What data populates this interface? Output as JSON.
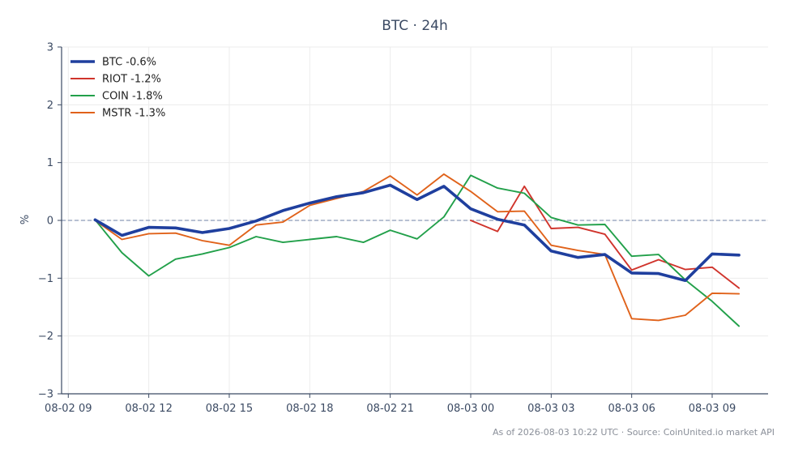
{
  "chart_data": {
    "type": "line",
    "title": "BTC · 24h",
    "xlabel": "",
    "ylabel": "%",
    "ylim": [
      -3,
      3
    ],
    "xlim": [
      "2026-08-02 08:45",
      "2026-08-03 11:05"
    ],
    "y_ticks": [
      3,
      2,
      1,
      0,
      -1,
      -2,
      -3
    ],
    "y_tick_labels": [
      "3",
      "2",
      "1",
      "0",
      "−1",
      "−2",
      "−3"
    ],
    "x_ticks": [
      "2026-08-02 09:00",
      "2026-08-02 12:00",
      "2026-08-02 15:00",
      "2026-08-02 18:00",
      "2026-08-02 21:00",
      "2026-08-03 00:00",
      "2026-08-03 03:00",
      "2026-08-03 06:00",
      "2026-08-03 09:00"
    ],
    "x_tick_labels": [
      "08-02 09",
      "08-02 12",
      "08-02 15",
      "08-02 18",
      "08-02 21",
      "08-03 00",
      "08-03 03",
      "08-03 06",
      "08-03 09"
    ],
    "grid": true,
    "zero_line": true,
    "legend_position": "top-left",
    "colors": {
      "BTC": "#1f3f9e",
      "RIOT": "#d0342c",
      "COIN": "#22a04a",
      "MSTR": "#e0621a",
      "zero_line": "#8c9bb8",
      "grid": "#ececec",
      "axis": "#3b4a63"
    },
    "series": [
      {
        "name": "BTC -0.6%",
        "key": "BTC",
        "x": [
          "2026-08-02 10:00",
          "2026-08-02 11:00",
          "2026-08-02 12:00",
          "2026-08-02 13:00",
          "2026-08-02 14:00",
          "2026-08-02 15:00",
          "2026-08-02 16:00",
          "2026-08-02 17:00",
          "2026-08-02 18:00",
          "2026-08-02 19:00",
          "2026-08-02 20:00",
          "2026-08-02 21:00",
          "2026-08-02 22:00",
          "2026-08-02 23:00",
          "2026-08-03 00:00",
          "2026-08-03 01:00",
          "2026-08-03 02:00",
          "2026-08-03 03:00",
          "2026-08-03 04:00",
          "2026-08-03 05:00",
          "2026-08-03 06:00",
          "2026-08-03 07:00",
          "2026-08-03 08:00",
          "2026-08-03 09:00",
          "2026-08-03 10:00"
        ],
        "y": [
          0.01,
          -0.26,
          -0.12,
          -0.13,
          -0.21,
          -0.14,
          -0.01,
          0.17,
          0.3,
          0.41,
          0.48,
          0.61,
          0.36,
          0.59,
          0.2,
          0.02,
          -0.08,
          -0.53,
          -0.64,
          -0.59,
          -0.91,
          -0.92,
          -1.04,
          -0.58,
          -0.6
        ]
      },
      {
        "name": "RIOT -1.2%",
        "key": "RIOT",
        "x": [
          "2026-08-03 00:00",
          "2026-08-03 01:00",
          "2026-08-03 02:00",
          "2026-08-03 03:00",
          "2026-08-03 04:00",
          "2026-08-03 05:00",
          "2026-08-03 06:00",
          "2026-08-03 07:00",
          "2026-08-03 08:00",
          "2026-08-03 09:00",
          "2026-08-03 10:00"
        ],
        "y": [
          0.0,
          -0.19,
          0.59,
          -0.14,
          -0.12,
          -0.24,
          -0.86,
          -0.68,
          -0.85,
          -0.81,
          -1.17
        ]
      },
      {
        "name": "COIN -1.8%",
        "key": "COIN",
        "x": [
          "2026-08-02 10:00",
          "2026-08-02 11:00",
          "2026-08-02 12:00",
          "2026-08-02 13:00",
          "2026-08-02 14:00",
          "2026-08-02 15:00",
          "2026-08-02 16:00",
          "2026-08-02 17:00",
          "2026-08-02 18:00",
          "2026-08-02 19:00",
          "2026-08-02 20:00",
          "2026-08-02 21:00",
          "2026-08-02 22:00",
          "2026-08-02 23:00",
          "2026-08-03 00:00",
          "2026-08-03 01:00",
          "2026-08-03 02:00",
          "2026-08-03 03:00",
          "2026-08-03 04:00",
          "2026-08-03 05:00",
          "2026-08-03 06:00",
          "2026-08-03 07:00",
          "2026-08-03 08:00",
          "2026-08-03 09:00",
          "2026-08-03 10:00"
        ],
        "y": [
          0.01,
          -0.56,
          -0.96,
          -0.67,
          -0.58,
          -0.47,
          -0.28,
          -0.38,
          -0.33,
          -0.28,
          -0.38,
          -0.17,
          -0.32,
          0.06,
          0.78,
          0.56,
          0.47,
          0.05,
          -0.08,
          -0.07,
          -0.62,
          -0.59,
          -1.03,
          -1.4,
          -1.83
        ]
      },
      {
        "name": "MSTR -1.3%",
        "key": "MSTR",
        "x": [
          "2026-08-02 10:00",
          "2026-08-02 11:00",
          "2026-08-02 12:00",
          "2026-08-02 13:00",
          "2026-08-02 14:00",
          "2026-08-02 15:00",
          "2026-08-02 16:00",
          "2026-08-02 17:00",
          "2026-08-02 18:00",
          "2026-08-02 19:00",
          "2026-08-02 20:00",
          "2026-08-02 21:00",
          "2026-08-02 22:00",
          "2026-08-02 23:00",
          "2026-08-03 00:00",
          "2026-08-03 01:00",
          "2026-08-03 02:00",
          "2026-08-03 03:00",
          "2026-08-03 04:00",
          "2026-08-03 05:00",
          "2026-08-03 06:00",
          "2026-08-03 07:00",
          "2026-08-03 08:00",
          "2026-08-03 09:00",
          "2026-08-03 10:00"
        ],
        "y": [
          0.0,
          -0.33,
          -0.23,
          -0.22,
          -0.35,
          -0.43,
          -0.08,
          -0.03,
          0.26,
          0.38,
          0.5,
          0.77,
          0.44,
          0.8,
          0.5,
          0.15,
          0.16,
          -0.43,
          -0.52,
          -0.59,
          -1.7,
          -1.73,
          -1.64,
          -1.26,
          -1.27
        ]
      }
    ],
    "footer": "As of 2026-08-03 10:22 UTC · Source: CoinUnited.io market API"
  }
}
